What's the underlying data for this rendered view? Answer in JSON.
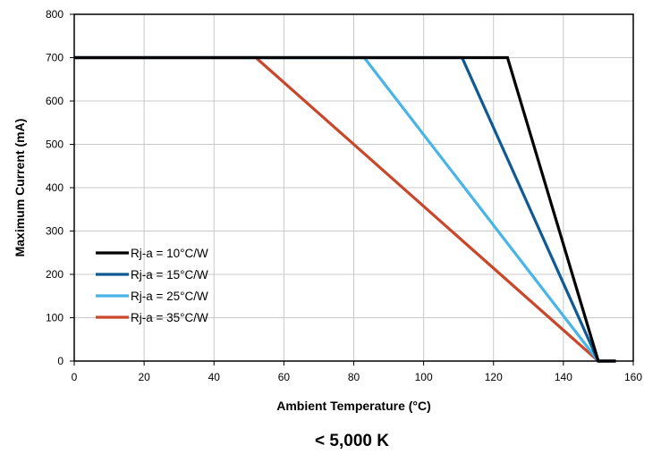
{
  "chart_data": {
    "type": "line",
    "title": "",
    "caption": "< 5,000 K",
    "xlabel": "Ambient Temperature (°C)",
    "ylabel": "Maximum Current (mA)",
    "xlim": [
      0,
      160
    ],
    "ylim": [
      0,
      800
    ],
    "xticks": [
      0,
      20,
      40,
      60,
      80,
      100,
      120,
      140,
      160
    ],
    "yticks": [
      0,
      100,
      200,
      300,
      400,
      500,
      600,
      700,
      800
    ],
    "grid": true,
    "legend_position": "bottom-left",
    "series": [
      {
        "name": "Rj-a = 10°C/W",
        "color": "#000000",
        "points": [
          [
            0,
            700
          ],
          [
            124,
            700
          ],
          [
            150,
            0
          ],
          [
            155,
            0
          ]
        ]
      },
      {
        "name": "Rj-a = 15°C/W",
        "color": "#0f5a94",
        "points": [
          [
            0,
            700
          ],
          [
            111,
            700
          ],
          [
            150,
            0
          ],
          [
            155,
            0
          ]
        ]
      },
      {
        "name": "Rj-a = 25°C/W",
        "color": "#47b5e6",
        "points": [
          [
            0,
            700
          ],
          [
            83,
            700
          ],
          [
            150,
            0
          ],
          [
            155,
            0
          ]
        ]
      },
      {
        "name": "Rj-a = 35°C/W",
        "color": "#c9472a",
        "points": [
          [
            0,
            700
          ],
          [
            52,
            700
          ],
          [
            150,
            0
          ],
          [
            155,
            0
          ]
        ]
      }
    ]
  }
}
